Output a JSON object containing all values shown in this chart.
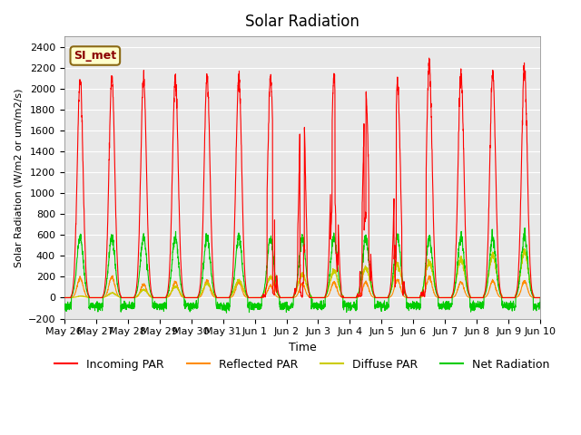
{
  "title": "Solar Radiation",
  "ylabel": "Solar Radiation (W/m2 or um/m2/s)",
  "xlabel": "Time",
  "ylim": [
    -200,
    2500
  ],
  "yticks": [
    -200,
    0,
    200,
    400,
    600,
    800,
    1000,
    1200,
    1400,
    1600,
    1800,
    2000,
    2200,
    2400
  ],
  "annotation_text": "SI_met",
  "annotation_color": "#8B0000",
  "annotation_bg": "#FFFFCC",
  "annotation_border": "#8B6914",
  "background_color": "#E8E8E8",
  "colors": {
    "incoming": "#FF0000",
    "reflected": "#FF8C00",
    "diffuse": "#CCCC00",
    "net": "#00CC00"
  },
  "legend_labels": [
    "Incoming PAR",
    "Reflected PAR",
    "Diffuse PAR",
    "Net Radiation"
  ],
  "x_tick_labels": [
    "May 26",
    "May 27",
    "May 28",
    "May 29",
    "May 30",
    "May 31",
    "Jun 1",
    "Jun 2",
    "Jun 3",
    "Jun 4",
    "Jun 5",
    "Jun 6",
    "Jun 7",
    "Jun 8",
    "Jun 9",
    "Jun 10"
  ],
  "n_days": 15,
  "pts_per_day": 200
}
